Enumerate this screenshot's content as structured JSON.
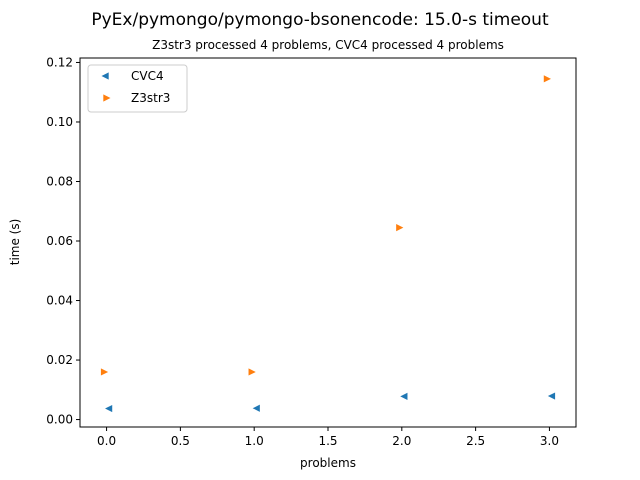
{
  "chart_data": {
    "type": "scatter",
    "title": "PyEx/pymongo/pymongo-bsonencode: 15.0-s timeout",
    "subtitle": "Z3str3 processed 4 problems, CVC4 processed 4 problems",
    "xlabel": "problems",
    "ylabel": "time (s)",
    "xlim": [
      -0.18,
      3.18
    ],
    "ylim": [
      -0.0025,
      0.1215
    ],
    "xticks": [
      {
        "value": 0.0,
        "label": "0.0"
      },
      {
        "value": 0.5,
        "label": "0.5"
      },
      {
        "value": 1.0,
        "label": "1.0"
      },
      {
        "value": 1.5,
        "label": "1.5"
      },
      {
        "value": 2.0,
        "label": "2.0"
      },
      {
        "value": 2.5,
        "label": "2.5"
      },
      {
        "value": 3.0,
        "label": "3.0"
      }
    ],
    "yticks": [
      {
        "value": 0.0,
        "label": "0.00"
      },
      {
        "value": 0.02,
        "label": "0.02"
      },
      {
        "value": 0.04,
        "label": "0.04"
      },
      {
        "value": 0.06,
        "label": "0.06"
      },
      {
        "value": 0.08,
        "label": "0.08"
      },
      {
        "value": 0.1,
        "label": "0.10"
      },
      {
        "value": 0.12,
        "label": "0.12"
      }
    ],
    "grid": false,
    "legend_position": "top-left",
    "series": [
      {
        "name": "CVC4",
        "color": "#1f77b4",
        "marker": "triangle-left",
        "x": [
          0.02,
          1.02,
          2.02,
          3.02
        ],
        "y": [
          0.0037,
          0.0038,
          0.0078,
          0.0079
        ]
      },
      {
        "name": "Z3str3",
        "color": "#ff7f0e",
        "marker": "triangle-right",
        "x": [
          -0.02,
          0.98,
          1.98,
          2.98
        ],
        "y": [
          0.016,
          0.016,
          0.0645,
          0.1145
        ]
      }
    ]
  }
}
